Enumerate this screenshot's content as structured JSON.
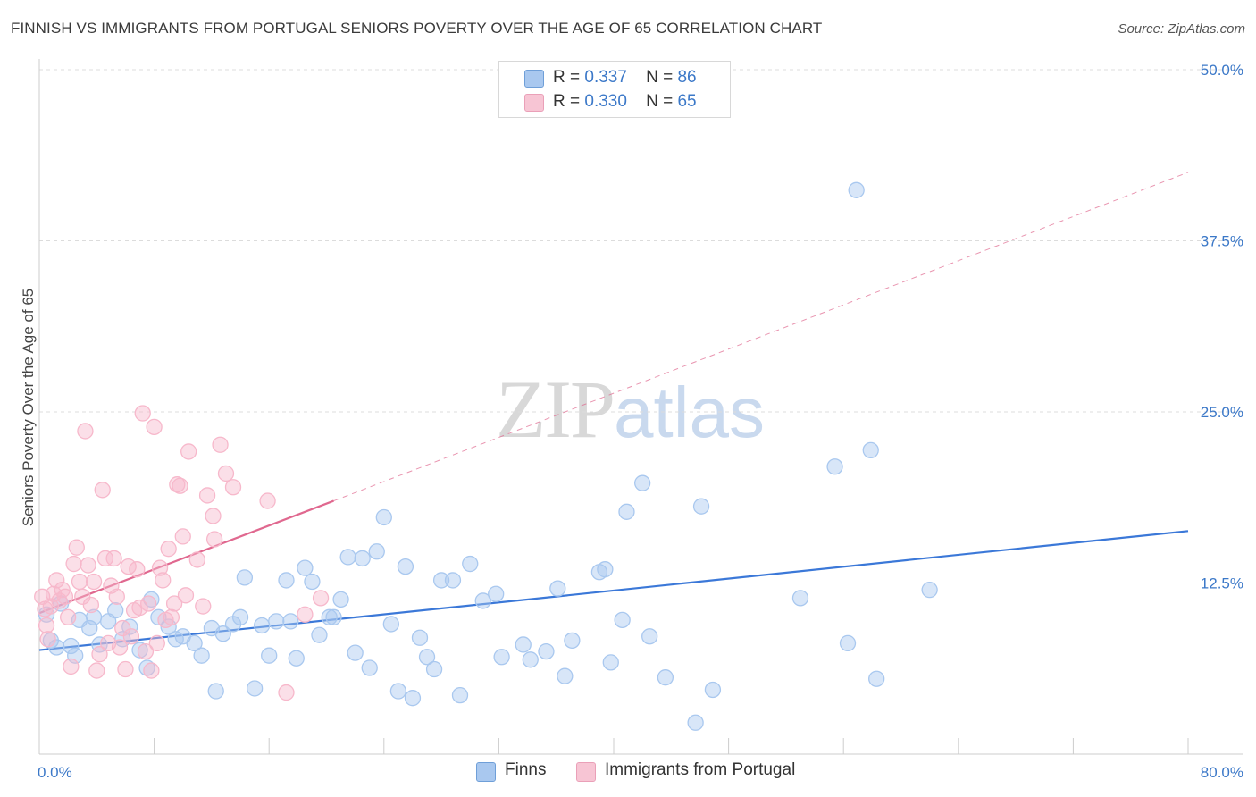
{
  "title": "FINNISH VS IMMIGRANTS FROM PORTUGAL SENIORS POVERTY OVER THE AGE OF 65 CORRELATION CHART",
  "source": "Source: ZipAtlas.com",
  "watermark": {
    "zip": "ZIP",
    "atlas": "atlas"
  },
  "legend": {
    "rows": [
      {
        "r_label": "R =",
        "r_value": "0.337",
        "n_label": "N =",
        "n_value": "86",
        "color": "#a9c8ef"
      },
      {
        "r_label": "R =",
        "r_value": "0.330",
        "n_label": "N =",
        "n_value": "65",
        "color": "#f7b8cb"
      }
    ]
  },
  "bottom_legend": [
    {
      "label": "Finns",
      "color": "#a9c8ef"
    },
    {
      "label": "Immigrants from Portugal",
      "color": "#f7b8cb"
    }
  ],
  "chart_data": {
    "type": "scatter",
    "title": "FINNISH VS IMMIGRANTS FROM PORTUGAL SENIORS POVERTY OVER THE AGE OF 65 CORRELATION CHART",
    "xlabel": "",
    "ylabel": "Seniors Poverty Over the Age of 65",
    "xlim": [
      0,
      80
    ],
    "ylim": [
      0,
      50
    ],
    "x_tick_labels": [
      "0.0%",
      "80.0%"
    ],
    "y_ticks": [
      12.5,
      25.0,
      37.5,
      50.0
    ],
    "y_tick_labels": [
      "12.5%",
      "25.0%",
      "37.5%",
      "50.0%"
    ],
    "grid": "horizontal dashed",
    "legend_position": "top-center",
    "series": [
      {
        "name": "Finns",
        "color": "#3b78d8",
        "fill": "#a9c8ef",
        "trend": {
          "x": [
            0,
            80
          ],
          "y": [
            7.6,
            16.3
          ],
          "style": "solid"
        },
        "points": [
          [
            0.5,
            10.2
          ],
          [
            0.8,
            8.3
          ],
          [
            1.2,
            7.8
          ],
          [
            1.5,
            11.0
          ],
          [
            2.2,
            7.9
          ],
          [
            2.5,
            7.2
          ],
          [
            2.8,
            9.8
          ],
          [
            3.5,
            9.2
          ],
          [
            3.8,
            10.0
          ],
          [
            4.2,
            8.0
          ],
          [
            4.8,
            9.7
          ],
          [
            5.3,
            10.5
          ],
          [
            5.8,
            8.4
          ],
          [
            6.3,
            9.3
          ],
          [
            7.0,
            7.6
          ],
          [
            7.5,
            6.3
          ],
          [
            7.8,
            11.3
          ],
          [
            8.3,
            10.0
          ],
          [
            9.0,
            9.3
          ],
          [
            9.5,
            8.4
          ],
          [
            10.0,
            8.6
          ],
          [
            10.8,
            8.1
          ],
          [
            11.3,
            7.2
          ],
          [
            12.0,
            9.2
          ],
          [
            12.3,
            4.6
          ],
          [
            12.8,
            8.8
          ],
          [
            13.5,
            9.5
          ],
          [
            14.0,
            10.0
          ],
          [
            14.3,
            12.9
          ],
          [
            15.0,
            4.8
          ],
          [
            15.5,
            9.4
          ],
          [
            16.0,
            7.2
          ],
          [
            16.5,
            9.7
          ],
          [
            17.2,
            12.7
          ],
          [
            17.5,
            9.7
          ],
          [
            17.9,
            7.0
          ],
          [
            18.5,
            13.6
          ],
          [
            19.0,
            12.6
          ],
          [
            19.5,
            8.7
          ],
          [
            20.2,
            10.0
          ],
          [
            20.5,
            10.0
          ],
          [
            21.0,
            11.3
          ],
          [
            21.5,
            14.4
          ],
          [
            22.0,
            7.4
          ],
          [
            22.5,
            14.3
          ],
          [
            23.0,
            6.3
          ],
          [
            23.5,
            14.8
          ],
          [
            24.0,
            17.3
          ],
          [
            24.5,
            9.5
          ],
          [
            25.0,
            4.6
          ],
          [
            25.5,
            13.7
          ],
          [
            26.0,
            4.1
          ],
          [
            26.5,
            8.5
          ],
          [
            27.0,
            7.1
          ],
          [
            27.5,
            6.2
          ],
          [
            28.0,
            12.7
          ],
          [
            28.8,
            12.7
          ],
          [
            29.3,
            4.3
          ],
          [
            30.0,
            13.9
          ],
          [
            30.9,
            11.2
          ],
          [
            31.8,
            11.7
          ],
          [
            32.2,
            7.1
          ],
          [
            33.7,
            8.0
          ],
          [
            34.2,
            6.9
          ],
          [
            35.3,
            7.5
          ],
          [
            36.1,
            12.1
          ],
          [
            36.6,
            5.7
          ],
          [
            37.1,
            8.3
          ],
          [
            39.0,
            13.3
          ],
          [
            39.4,
            13.5
          ],
          [
            39.8,
            6.7
          ],
          [
            40.6,
            9.8
          ],
          [
            40.9,
            17.7
          ],
          [
            42.0,
            19.8
          ],
          [
            42.5,
            8.6
          ],
          [
            43.6,
            5.6
          ],
          [
            45.7,
            2.3
          ],
          [
            46.1,
            18.1
          ],
          [
            46.9,
            4.7
          ],
          [
            53.0,
            11.4
          ],
          [
            55.4,
            21.0
          ],
          [
            56.3,
            8.1
          ],
          [
            56.9,
            41.2
          ],
          [
            57.9,
            22.2
          ],
          [
            58.3,
            5.5
          ],
          [
            62.0,
            12.0
          ]
        ]
      },
      {
        "name": "Immigrants from Portugal",
        "color": "#e0688f",
        "fill": "#f7b8cb",
        "trend": {
          "x": [
            0,
            20.5
          ],
          "y": [
            10.3,
            18.5
          ],
          "style": "solid",
          "extension": {
            "x": [
              20.5,
              80
            ],
            "y": [
              18.5,
              42.5
            ],
            "style": "dashed"
          }
        },
        "points": [
          [
            0.2,
            11.5
          ],
          [
            0.4,
            10.6
          ],
          [
            0.5,
            9.4
          ],
          [
            0.6,
            8.4
          ],
          [
            0.8,
            10.8
          ],
          [
            1.0,
            11.7
          ],
          [
            1.2,
            12.7
          ],
          [
            1.4,
            11.2
          ],
          [
            1.6,
            12.0
          ],
          [
            1.8,
            11.5
          ],
          [
            2.0,
            10.0
          ],
          [
            2.2,
            6.4
          ],
          [
            2.4,
            13.9
          ],
          [
            2.6,
            15.1
          ],
          [
            2.8,
            12.6
          ],
          [
            3.0,
            11.5
          ],
          [
            3.2,
            23.6
          ],
          [
            3.4,
            13.8
          ],
          [
            3.6,
            10.9
          ],
          [
            3.8,
            12.6
          ],
          [
            4.0,
            6.1
          ],
          [
            4.2,
            7.3
          ],
          [
            4.4,
            19.3
          ],
          [
            4.6,
            14.3
          ],
          [
            4.8,
            8.1
          ],
          [
            5.0,
            12.3
          ],
          [
            5.2,
            14.3
          ],
          [
            5.4,
            11.5
          ],
          [
            5.6,
            7.8
          ],
          [
            5.8,
            9.2
          ],
          [
            6.0,
            6.2
          ],
          [
            6.2,
            13.7
          ],
          [
            6.4,
            8.6
          ],
          [
            6.6,
            10.5
          ],
          [
            6.8,
            13.5
          ],
          [
            7.0,
            10.7
          ],
          [
            7.2,
            24.9
          ],
          [
            7.4,
            7.5
          ],
          [
            7.6,
            11.0
          ],
          [
            7.8,
            6.1
          ],
          [
            8.0,
            23.9
          ],
          [
            8.2,
            8.1
          ],
          [
            8.4,
            13.6
          ],
          [
            8.6,
            12.7
          ],
          [
            8.8,
            9.8
          ],
          [
            9.0,
            15.0
          ],
          [
            9.2,
            10.0
          ],
          [
            9.4,
            11.0
          ],
          [
            9.6,
            19.7
          ],
          [
            9.8,
            19.6
          ],
          [
            10.0,
            15.9
          ],
          [
            10.2,
            11.6
          ],
          [
            10.4,
            22.1
          ],
          [
            11.0,
            14.2
          ],
          [
            11.4,
            10.8
          ],
          [
            11.7,
            18.9
          ],
          [
            12.1,
            17.4
          ],
          [
            12.2,
            15.7
          ],
          [
            12.6,
            22.6
          ],
          [
            13.0,
            20.5
          ],
          [
            13.5,
            19.5
          ],
          [
            15.9,
            18.5
          ],
          [
            17.2,
            4.5
          ],
          [
            18.5,
            10.2
          ],
          [
            19.6,
            11.4
          ]
        ]
      }
    ]
  }
}
